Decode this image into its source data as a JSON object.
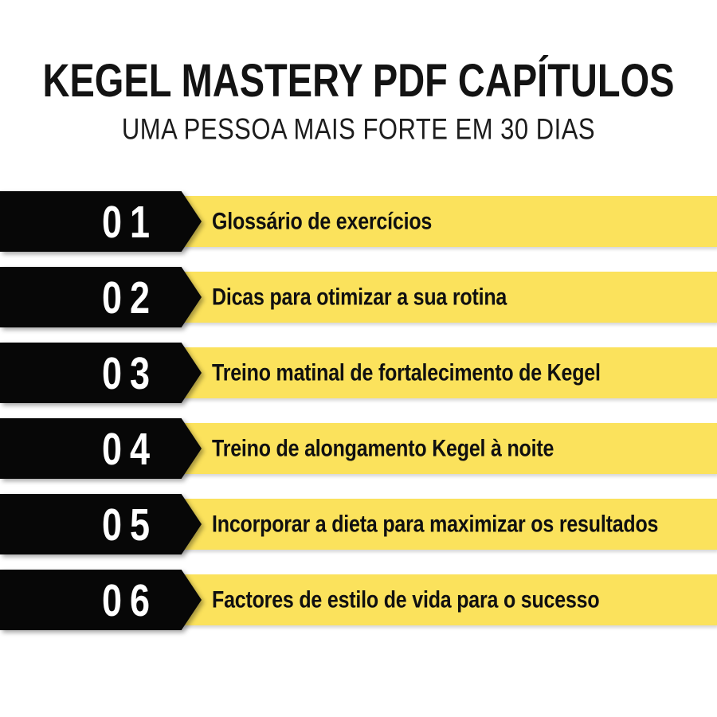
{
  "header": {
    "title": "KEGEL MASTERY PDF CAPÍTULOS",
    "subtitle": "UMA PESSOA MAIS FORTE EM 30 DIAS"
  },
  "chapters": [
    {
      "number": "01",
      "label": "Glossário de exercícios"
    },
    {
      "number": "02",
      "label": "Dicas para otimizar a sua rotina"
    },
    {
      "number": "03",
      "label": "Treino matinal de fortalecimento de Kegel"
    },
    {
      "number": "04",
      "label": "Treino de alongamento Kegel à noite"
    },
    {
      "number": "05",
      "label": "Incorporar a dieta para maximizar os resultados"
    },
    {
      "number": "06",
      "label": "Factores de estilo de vida para o sucesso"
    }
  ],
  "colors": {
    "background": "#ffffff",
    "bar_yellow": "#fbe25c",
    "arrow_black": "#070707",
    "number_white": "#ffffff",
    "text_dark": "#131313"
  }
}
